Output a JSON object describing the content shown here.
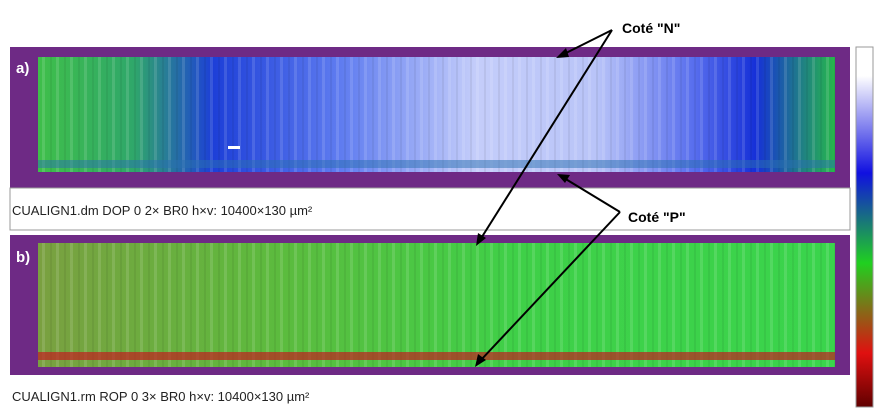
{
  "labels": {
    "n_side": "Coté \"N\"",
    "p_side": "Coté \"P\""
  },
  "panels": [
    {
      "tag": "a)",
      "caption": "CUALIGN1.dm  DOP 0 2× BR0  h×v: 10400×130 µm²"
    },
    {
      "tag": "b)",
      "caption": "CUALIGN1.rm  ROP 0 3× BR0  h×v: 10400×130 µm²"
    }
  ]
}
